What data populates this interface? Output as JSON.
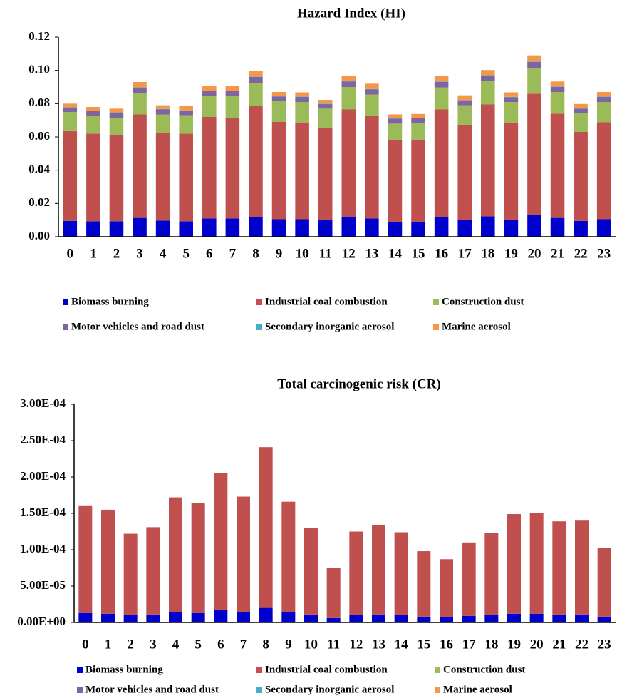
{
  "chart_data": [
    {
      "type": "bar",
      "stacked": true,
      "title": "Hazard Index (HI)",
      "categories": [
        "0",
        "1",
        "2",
        "3",
        "4",
        "5",
        "6",
        "7",
        "8",
        "9",
        "10",
        "11",
        "12",
        "13",
        "14",
        "15",
        "16",
        "17",
        "18",
        "19",
        "20",
        "21",
        "22",
        "23"
      ],
      "ylim": [
        0,
        0.12
      ],
      "yticks": [
        {
          "value": 0,
          "label": "0.00"
        },
        {
          "value": 0.02,
          "label": "0.02"
        },
        {
          "value": 0.04,
          "label": "0.04"
        },
        {
          "value": 0.06,
          "label": "0.06"
        },
        {
          "value": 0.08,
          "label": "0.08"
        },
        {
          "value": 0.1,
          "label": "0.10"
        },
        {
          "value": 0.12,
          "label": "0.12"
        }
      ],
      "series": [
        {
          "name": "Biomass burning",
          "color": "#0000cc",
          "values": [
            0.0095,
            0.0093,
            0.0093,
            0.0113,
            0.0097,
            0.0093,
            0.011,
            0.011,
            0.012,
            0.0105,
            0.0105,
            0.01,
            0.0117,
            0.011,
            0.0088,
            0.0088,
            0.0117,
            0.0102,
            0.0122,
            0.0103,
            0.0132,
            0.0113,
            0.0095,
            0.0105
          ]
        },
        {
          "name": "Industrial coal combustion",
          "color": "#c0504d",
          "values": [
            0.054,
            0.0527,
            0.0517,
            0.0622,
            0.0525,
            0.0527,
            0.061,
            0.0605,
            0.0665,
            0.0585,
            0.0582,
            0.0552,
            0.0648,
            0.0615,
            0.0492,
            0.0495,
            0.0648,
            0.0568,
            0.0673,
            0.0584,
            0.0728,
            0.0627,
            0.0535,
            0.0583
          ]
        },
        {
          "name": "Construction dust",
          "color": "#9bbb59",
          "values": [
            0.0115,
            0.0108,
            0.0105,
            0.013,
            0.0113,
            0.011,
            0.0125,
            0.013,
            0.014,
            0.0125,
            0.0123,
            0.0118,
            0.0135,
            0.013,
            0.01,
            0.0102,
            0.0132,
            0.012,
            0.014,
            0.0123,
            0.0155,
            0.013,
            0.0113,
            0.0122
          ]
        },
        {
          "name": "Motor vehicles and road dust",
          "color": "#8064a2",
          "values": [
            0.0025,
            0.0027,
            0.003,
            0.003,
            0.003,
            0.0027,
            0.003,
            0.003,
            0.0035,
            0.0028,
            0.003,
            0.0027,
            0.0032,
            0.003,
            0.003,
            0.0027,
            0.0033,
            0.0028,
            0.0033,
            0.0028,
            0.0035,
            0.003,
            0.0027,
            0.003
          ]
        },
        {
          "name": "Secondary inorganic aerosol",
          "color": "#4bacc6",
          "values": [
            0.0003,
            0.0003,
            0.0003,
            0.0003,
            0.0003,
            0.0003,
            0.0003,
            0.0003,
            0.0003,
            0.0003,
            0.0003,
            0.0003,
            0.0003,
            0.0003,
            0.0003,
            0.0003,
            0.0003,
            0.0003,
            0.0003,
            0.0003,
            0.0003,
            0.0003,
            0.0003,
            0.0003
          ]
        },
        {
          "name": "Marine aerosol",
          "color": "#f79646",
          "values": [
            0.0022,
            0.0022,
            0.0022,
            0.0032,
            0.0022,
            0.0025,
            0.0027,
            0.0027,
            0.0032,
            0.0024,
            0.0025,
            0.0023,
            0.003,
            0.0032,
            0.0022,
            0.0023,
            0.0032,
            0.0029,
            0.0031,
            0.0027,
            0.0037,
            0.003,
            0.0025,
            0.0027
          ]
        }
      ]
    },
    {
      "type": "bar",
      "stacked": true,
      "title": "Total carcinogenic risk (CR)",
      "categories": [
        "0",
        "1",
        "2",
        "3",
        "4",
        "5",
        "6",
        "7",
        "8",
        "9",
        "10",
        "11",
        "12",
        "13",
        "14",
        "15",
        "16",
        "17",
        "18",
        "19",
        "20",
        "21",
        "22",
        "23"
      ],
      "ylim": [
        0,
        0.0003
      ],
      "yticks": [
        {
          "value": 0,
          "label": "0.00E+00"
        },
        {
          "value": 5e-05,
          "label": "5.00E-05"
        },
        {
          "value": 0.0001,
          "label": "1.00E-04"
        },
        {
          "value": 0.00015,
          "label": "1.50E-04"
        },
        {
          "value": 0.0002,
          "label": "2.00E-04"
        },
        {
          "value": 0.00025,
          "label": "2.50E-04"
        },
        {
          "value": 0.0003,
          "label": "3.00E-04"
        }
      ],
      "series": [
        {
          "name": "Biomass burning",
          "color": "#0000cc",
          "values": [
            1.3e-05,
            1.2e-05,
            1e-05,
            1.1e-05,
            1.4e-05,
            1.3e-05,
            1.7e-05,
            1.4e-05,
            2e-05,
            1.4e-05,
            1.1e-05,
            6e-06,
            1e-05,
            1.1e-05,
            1e-05,
            8e-06,
            7e-06,
            9e-06,
            1e-05,
            1.2e-05,
            1.2e-05,
            1.1e-05,
            1.1e-05,
            8e-06
          ]
        },
        {
          "name": "Industrial coal combustion",
          "color": "#c0504d",
          "values": [
            0.000147,
            0.000143,
            0.000112,
            0.00012,
            0.000158,
            0.000151,
            0.000188,
            0.000159,
            0.000221,
            0.000152,
            0.000119,
            6.9e-05,
            0.000115,
            0.000123,
            0.000114,
            9e-05,
            8e-05,
            0.000101,
            0.000113,
            0.000137,
            0.000138,
            0.000128,
            0.000129,
            9.4e-05
          ]
        },
        {
          "name": "Construction dust",
          "color": "#9bbb59",
          "values": [
            0,
            0,
            0,
            0,
            0,
            0,
            0,
            0,
            0,
            0,
            0,
            0,
            0,
            0,
            0,
            0,
            0,
            0,
            0,
            0,
            0,
            0,
            0,
            0
          ]
        },
        {
          "name": "Motor vehicles and road dust",
          "color": "#8064a2",
          "values": [
            0,
            0,
            0,
            0,
            0,
            0,
            0,
            0,
            0,
            0,
            0,
            0,
            0,
            0,
            0,
            0,
            0,
            0,
            0,
            0,
            0,
            0,
            0,
            0
          ]
        },
        {
          "name": "Secondary inorganic aerosol",
          "color": "#4bacc6",
          "values": [
            0,
            0,
            0,
            0,
            0,
            0,
            0,
            0,
            0,
            0,
            0,
            0,
            0,
            0,
            0,
            0,
            0,
            0,
            0,
            0,
            0,
            0,
            0,
            0
          ]
        },
        {
          "name": "Marine aerosol",
          "color": "#f79646",
          "values": [
            0,
            0,
            0,
            0,
            0,
            0,
            0,
            0,
            0,
            0,
            0,
            0,
            0,
            0,
            0,
            0,
            0,
            0,
            0,
            0,
            0,
            0,
            0,
            0
          ]
        }
      ]
    }
  ]
}
